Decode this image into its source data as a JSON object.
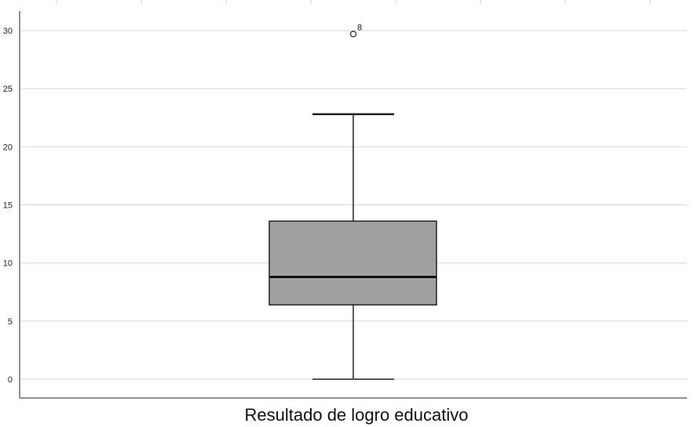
{
  "chart_data": {
    "type": "boxplot",
    "title": "",
    "xlabel": "Resultado de logro educativo",
    "ylabel": "",
    "ylim": [
      0,
      30
    ],
    "yticks": [
      0,
      5,
      10,
      15,
      20,
      25,
      30
    ],
    "grid": true,
    "box_color": "#a0a0a0",
    "series": [
      {
        "category": "Resultado de logro educativo",
        "min": 0,
        "q1": 6.4,
        "median": 8.8,
        "q3": 13.6,
        "max": 22.8,
        "outliers": [
          {
            "value": 29.7,
            "label": "8"
          }
        ]
      }
    ]
  }
}
